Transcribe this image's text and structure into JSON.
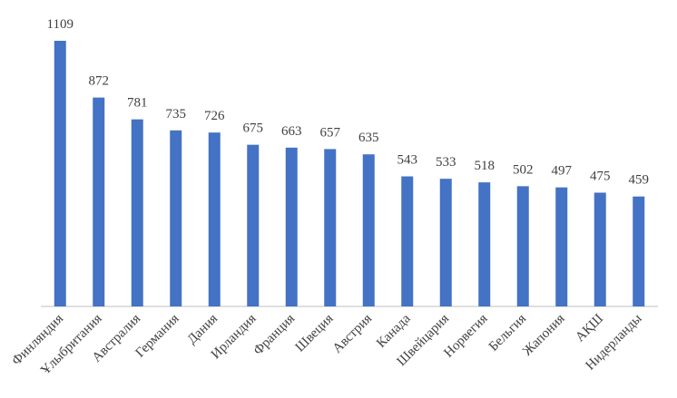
{
  "chart_data": {
    "type": "bar",
    "categories": [
      "Финляндия",
      "Ұлыбритания",
      "Австралия",
      "Германия",
      "Дания",
      "Ирландия",
      "Франция",
      "Швеция",
      "Австрия",
      "Канада",
      "Швейцария",
      "Норвегия",
      "Бельгия",
      "Жапония",
      "АҚШ",
      "Нидерланды"
    ],
    "values": [
      1109,
      872,
      781,
      735,
      726,
      675,
      663,
      657,
      635,
      543,
      533,
      518,
      502,
      497,
      475,
      459
    ],
    "color": "#4472c4"
  }
}
